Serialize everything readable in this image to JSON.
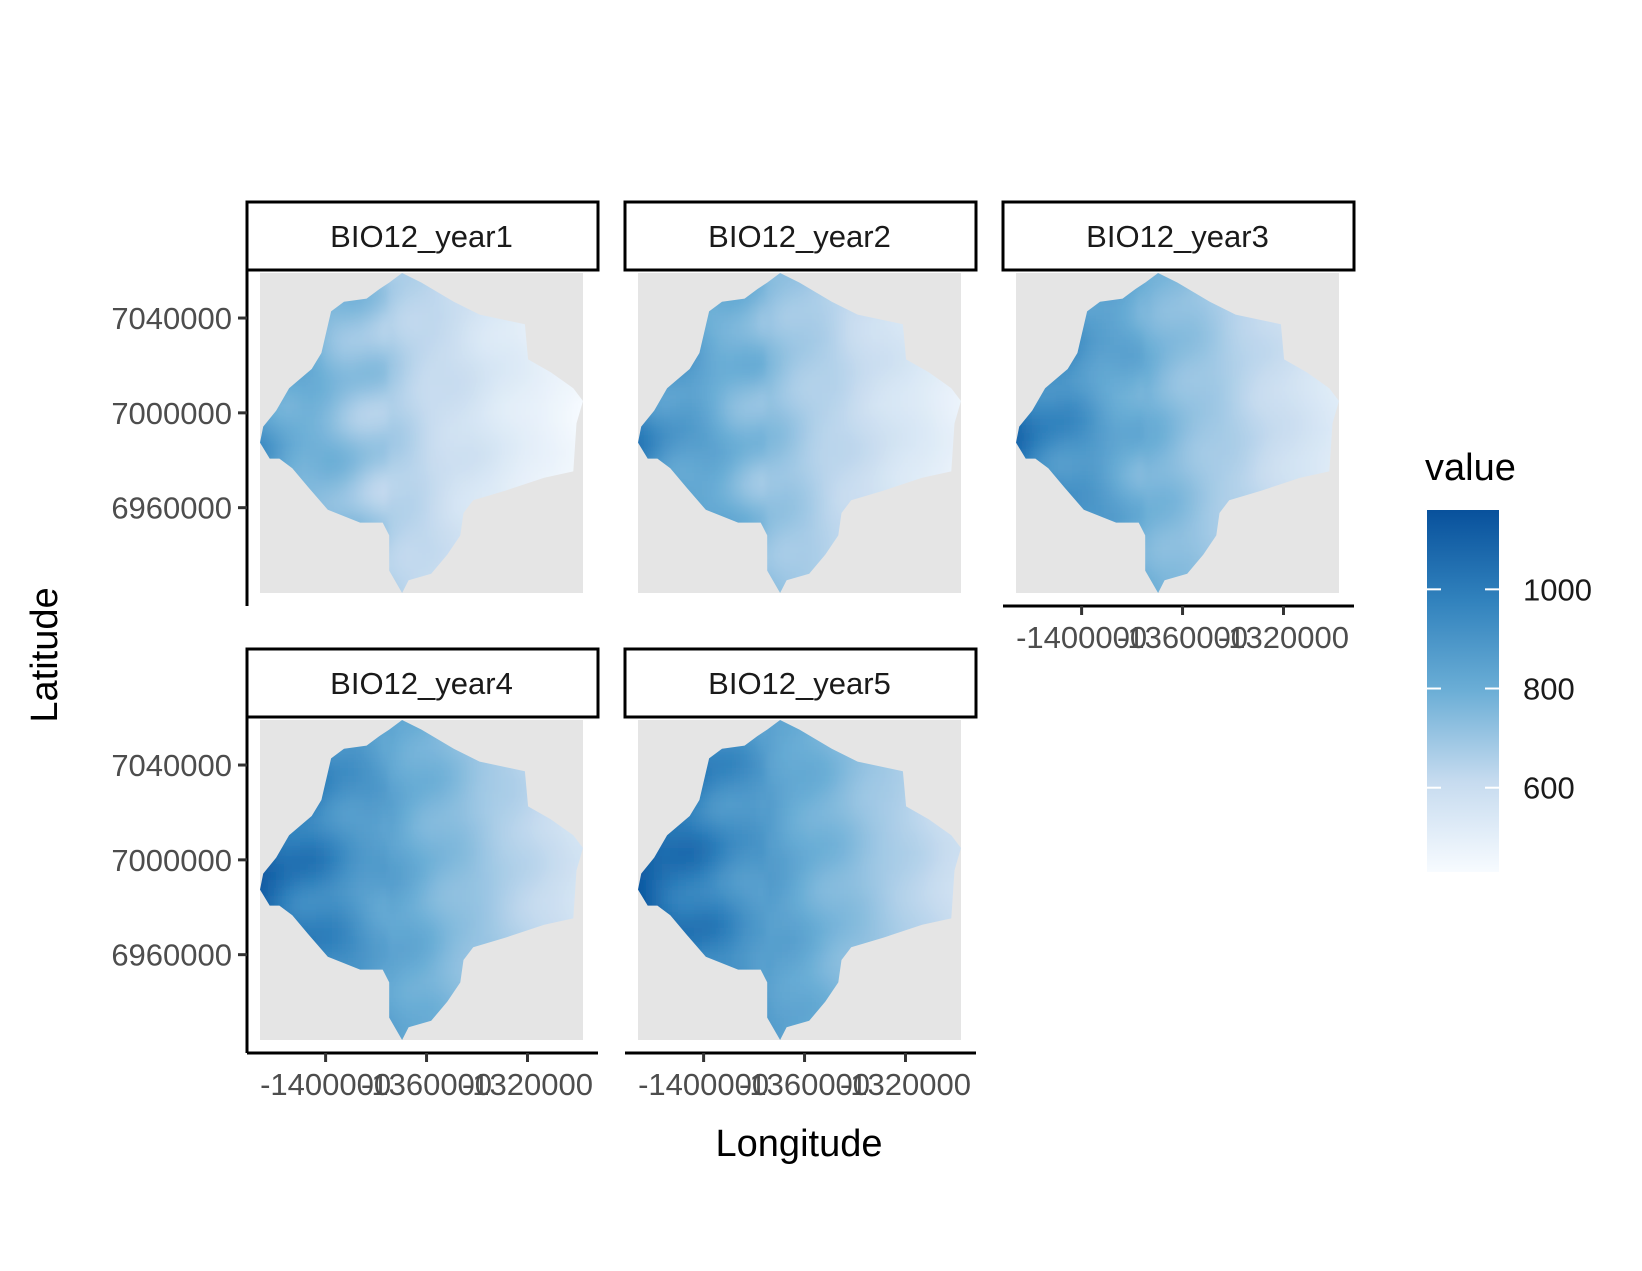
{
  "chart_data": {
    "type": "heatmap",
    "title": "",
    "xlabel": "Longitude",
    "ylabel": "Latitude",
    "x_ticks": [
      {
        "value": -1400000,
        "label": "-1400000"
      },
      {
        "value": -1360000,
        "label": "-1360000"
      },
      {
        "value": -1320000,
        "label": "-1320000"
      }
    ],
    "y_ticks": [
      {
        "value": 7040000,
        "label": "7040000"
      },
      {
        "value": 7000000,
        "label": "7000000"
      },
      {
        "value": 6960000,
        "label": "6960000"
      }
    ],
    "xlim": [
      -1426000,
      -1298000
    ],
    "ylim": [
      6924000,
      7059000
    ],
    "grid": false,
    "legend": {
      "title": "value",
      "placement": "right",
      "ticks": [
        {
          "value": 600,
          "label": "600"
        },
        {
          "value": 800,
          "label": "800"
        },
        {
          "value": 1000,
          "label": "1000"
        }
      ],
      "range": [
        430,
        1160
      ],
      "low_color": "#f7fbff",
      "high_color": "#08519c"
    },
    "panel_background": "#e5e5e5",
    "panels": [
      {
        "label": "BIO12_year1",
        "west_max": 880,
        "east_min": 440,
        "mean_shift": -90
      },
      {
        "label": "BIO12_year2",
        "west_max": 960,
        "east_min": 480,
        "mean_shift": -50
      },
      {
        "label": "BIO12_year3",
        "west_max": 1030,
        "east_min": 520,
        "mean_shift": 0
      },
      {
        "label": "BIO12_year4",
        "west_max": 1100,
        "east_min": 560,
        "mean_shift": 40
      },
      {
        "label": "BIO12_year5",
        "west_max": 1130,
        "east_min": 580,
        "mean_shift": 60
      }
    ]
  }
}
